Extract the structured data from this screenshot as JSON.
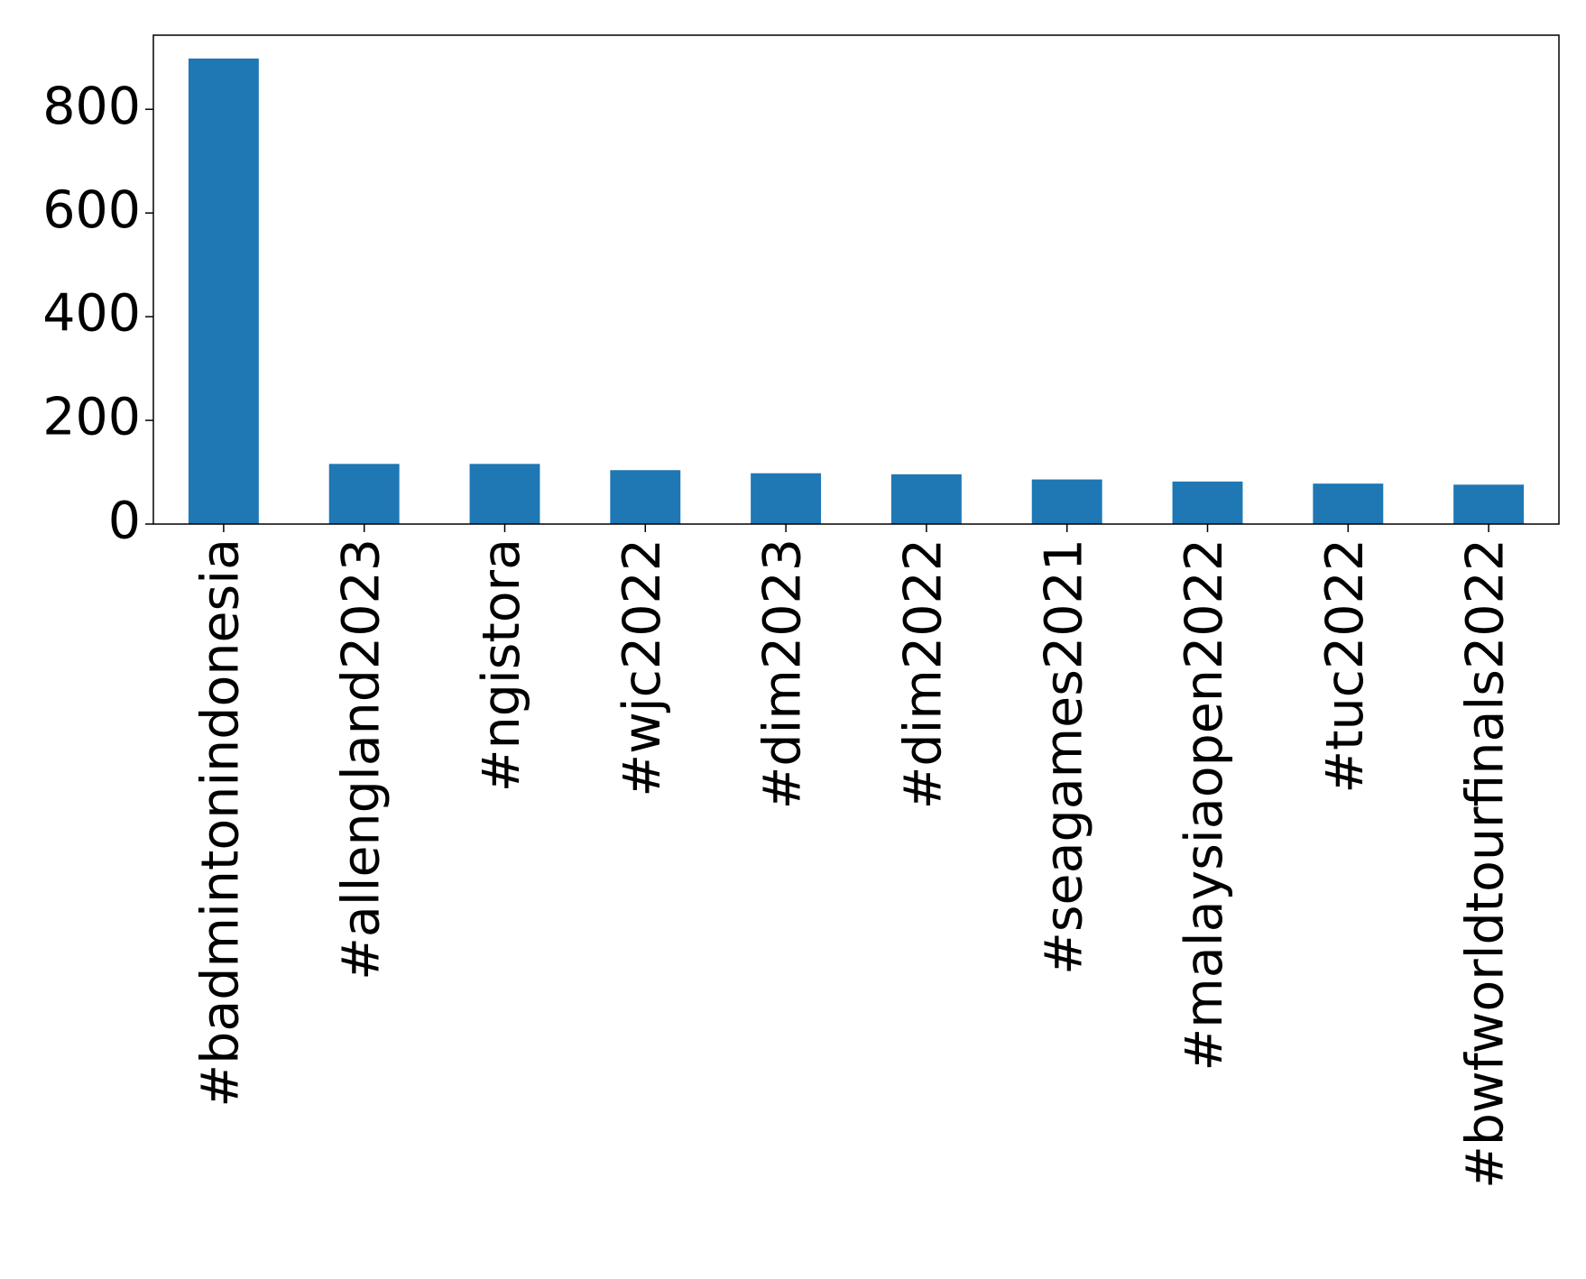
{
  "chart_data": {
    "type": "bar",
    "categories": [
      "#badmintonindonesia",
      "#allengland2023",
      "#ngistora",
      "#wjc2022",
      "#dim2023",
      "#dim2022",
      "#seagames2021",
      "#malaysiaopen2022",
      "#tuc2022",
      "#bwfworldtourfinals2022"
    ],
    "values": [
      898,
      116,
      116,
      104,
      98,
      96,
      86,
      82,
      78,
      76
    ],
    "color": "#1f77b4",
    "ylim": [
      0,
      943
    ],
    "yticks": [
      0,
      200,
      400,
      600,
      800
    ],
    "grid": false
  }
}
